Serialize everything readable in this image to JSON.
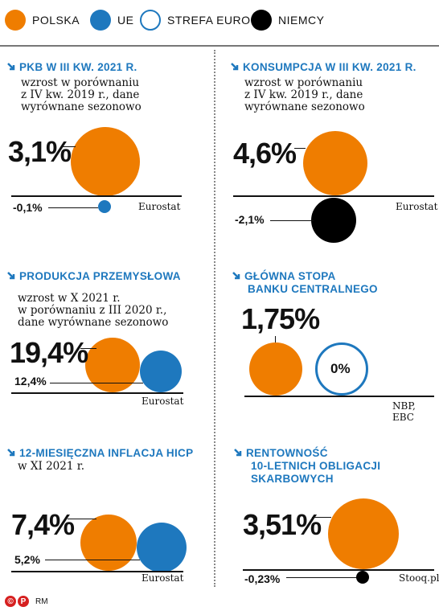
{
  "colors": {
    "polska": "#ef7d00",
    "ue": "#1e78be",
    "strefa_euro": "#1e78be",
    "niemcy": "#000000",
    "title": "#1e78be"
  },
  "legend": [
    {
      "label": "POLSKA",
      "style": "filled",
      "color": "#ef7d00"
    },
    {
      "label": "UE",
      "style": "filled",
      "color": "#1e78be"
    },
    {
      "label": "STREFA EURO",
      "style": "outline",
      "color": "#1e78be"
    },
    {
      "label": "NIEMCY",
      "style": "filled",
      "color": "#000000"
    }
  ],
  "chart_data": [
    {
      "type": "bubble",
      "title": "PKB W III KW. 2021 R.",
      "subtitle": [
        "wzrost w porównaniu",
        "z IV kw. 2019 r., dane",
        "wyrównane sezonowo"
      ],
      "source": "Eurostat",
      "series": [
        {
          "name": "POLSKA",
          "value": 3.1,
          "label": "3,1%"
        },
        {
          "name": "UE",
          "value": -0.1,
          "label": "-0,1%"
        }
      ]
    },
    {
      "type": "bubble",
      "title": "KONSUMPCJA W III KW. 2021 R.",
      "subtitle": [
        "wzrost w porównaniu",
        "z IV kw. 2019 r., dane",
        "wyrównane sezonowo"
      ],
      "source": "Eurostat",
      "series": [
        {
          "name": "POLSKA",
          "value": 4.6,
          "label": "4,6%"
        },
        {
          "name": "NIEMCY",
          "value": -2.1,
          "label": "-2,1%"
        }
      ]
    },
    {
      "type": "bubble",
      "title": "PRODUKCJA PRZEMYSŁOWA",
      "subtitle": [
        "wzrost w X 2021 r.",
        "w porównaniu z III 2020 r.,",
        "dane wyrównane sezonowo"
      ],
      "source": "Eurostat",
      "series": [
        {
          "name": "POLSKA",
          "value": 19.4,
          "label": "19,4%"
        },
        {
          "name": "UE",
          "value": 12.4,
          "label": "12,4%"
        }
      ]
    },
    {
      "type": "bubble",
      "title": [
        "GŁÓWNA STOPA",
        "BANKU CENTRALNEGO"
      ],
      "subtitle": [],
      "source": "NBP, EBC",
      "series": [
        {
          "name": "POLSKA",
          "value": 1.75,
          "label": "1,75%"
        },
        {
          "name": "STREFA EURO",
          "value": 0,
          "label": "0%"
        }
      ]
    },
    {
      "type": "bubble",
      "title": "12-MIESIĘCZNA INFLACJA HICP",
      "subtitle": [
        "w XI 2021 r."
      ],
      "source": "Eurostat",
      "series": [
        {
          "name": "POLSKA",
          "value": 7.4,
          "label": "7,4%"
        },
        {
          "name": "UE",
          "value": 5.2,
          "label": "5,2%"
        }
      ]
    },
    {
      "type": "bubble",
      "title": [
        "RENTOWNOŚĆ",
        "10-LETNICH OBLIGACJI",
        "SKARBOWYCH"
      ],
      "subtitle": [],
      "source": "Stooq.pl",
      "series": [
        {
          "name": "POLSKA",
          "value": 3.51,
          "label": "3,51%"
        },
        {
          "name": "NIEMCY",
          "value": -0.23,
          "label": "-0,23%"
        }
      ]
    }
  ],
  "footer": {
    "logo": "©P",
    "credit": "RM"
  }
}
